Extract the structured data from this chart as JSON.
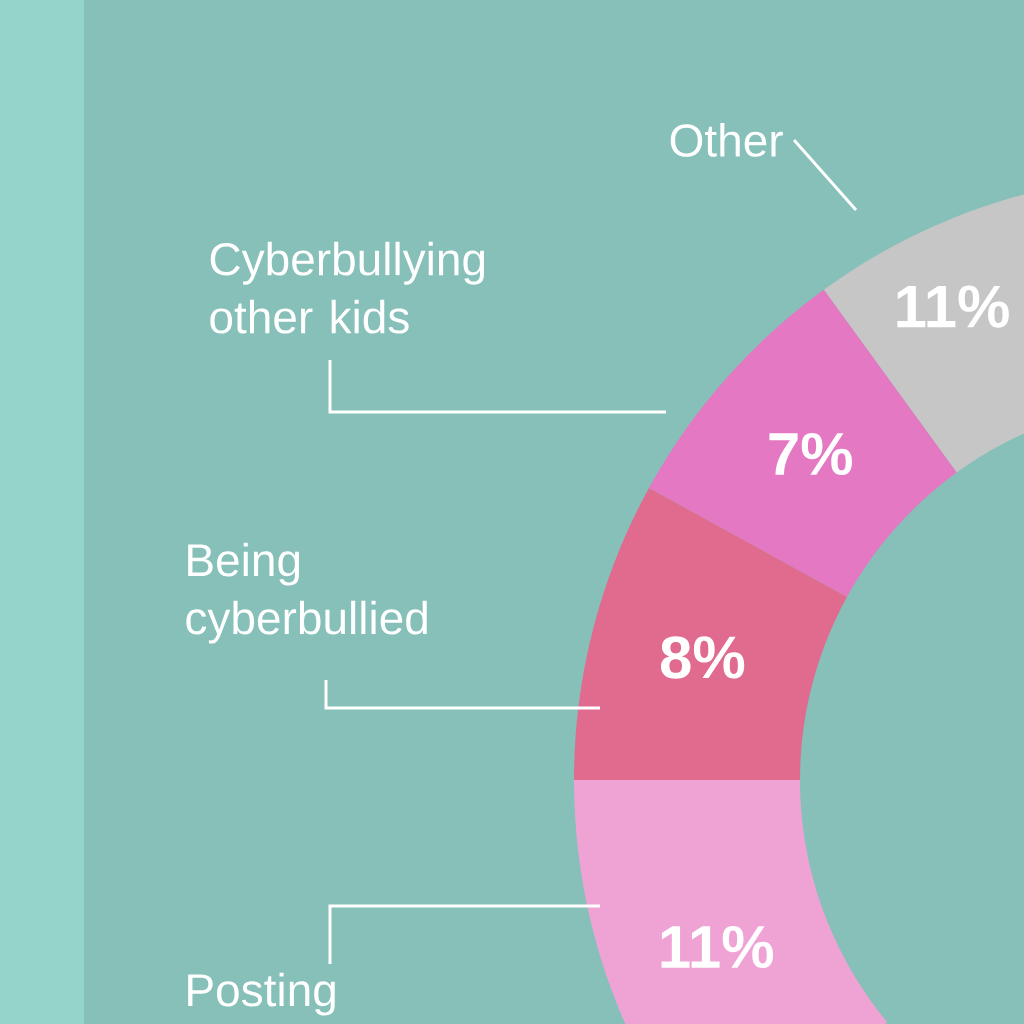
{
  "chart_data": {
    "type": "donut",
    "categories": [
      "Other",
      "Cyberbullying other kids",
      "Being cyberbullied",
      "Posting"
    ],
    "values": [
      11,
      7,
      8,
      11
    ],
    "colors": [
      "#c6c6c6",
      "#e478c2",
      "#e06b8f",
      "#eea3d4"
    ],
    "value_labels": [
      "11%",
      "7%",
      "8%",
      "11%"
    ]
  }
}
